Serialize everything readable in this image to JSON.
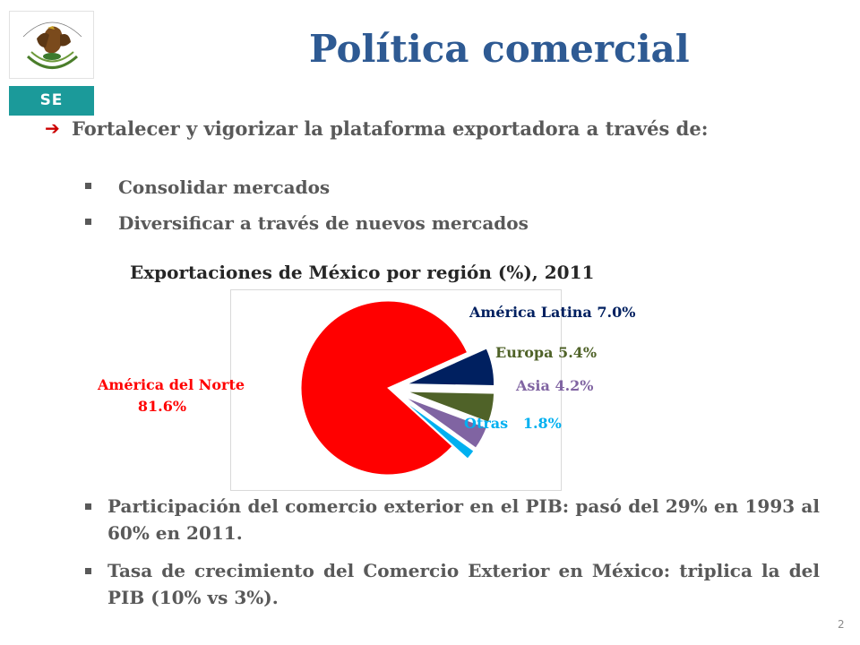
{
  "logo": {
    "label": "SE",
    "seal_text": "ESTADOS UNIDOS MEXICANOS"
  },
  "slide": {
    "title": "Política comercial",
    "main_bullet": "Fortalecer y vigorizar la plataforma exportadora a través de:",
    "sub_bullets": [
      "Consolidar mercados",
      "Diversificar a través de nuevos mercados"
    ],
    "bottom_bullets": [
      "Participación del comercio exterior en el PIB: pasó del 29% en 1993 al 60% en 2011.",
      "Tasa de crecimiento del Comercio Exterior en México: triplica la del PIB (10% vs 3%)."
    ],
    "page_number": "2"
  },
  "colors": {
    "title": "#2e5a93",
    "america_norte": "#ff0000",
    "america_latina": "#002060",
    "europa": "#4f6228",
    "asia": "#8064a2",
    "otras": "#00b0f0"
  },
  "chart_data": {
    "type": "pie",
    "title": "Exportaciones de México por región (%), 2011",
    "slices": [
      {
        "name": "América del Norte",
        "value": 81.6,
        "label": "América del Norte 81.6%",
        "color": "#ff0000",
        "exploded": false
      },
      {
        "name": "América Latina",
        "value": 7.0,
        "label": "América Latina 7.0%",
        "color": "#002060",
        "exploded": true
      },
      {
        "name": "Europa",
        "value": 5.4,
        "label": "Europa 5.4%",
        "color": "#4f6228",
        "exploded": true
      },
      {
        "name": "Asia",
        "value": 4.2,
        "label": "Asia 4.2%",
        "color": "#8064a2",
        "exploded": true
      },
      {
        "name": "Otras",
        "value": 1.8,
        "label": "Otras   1.8%",
        "color": "#00b0f0",
        "exploded": true
      }
    ],
    "legend": "none"
  },
  "labels": {
    "america_norte_line1": "América del Norte",
    "america_norte_line2": "81.6%",
    "america_latina": "América Latina 7.0%",
    "europa": "Europa 5.4%",
    "asia": "Asia 4.2%",
    "otras": "Otras   1.8%"
  }
}
